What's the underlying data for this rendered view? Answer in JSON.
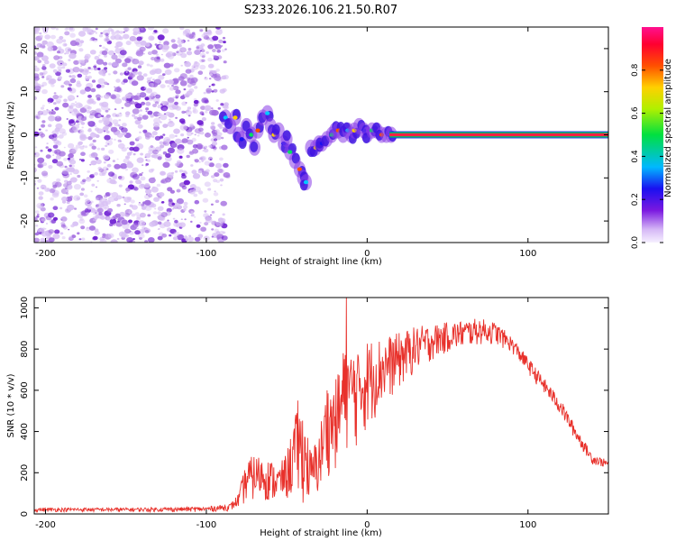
{
  "title": "S233.2026.106.21.50.R07",
  "colors": {
    "snr_line": "#e8312b",
    "spectral_line_core": "#ff1f44",
    "spectral_line_edge": "#00c060",
    "scatter_light": "#d8c0f4",
    "scatter_mid": "#a46ee0",
    "scatter_dark": "#6a18d0"
  },
  "chart_data": [
    {
      "type": "heatmap",
      "title": "S233.2026.106.21.50.R07",
      "xlabel": "Height of straight line (km)",
      "ylabel": "Frequency (Hz)",
      "xlim": [
        -207,
        150
      ],
      "ylim": [
        -25,
        25
      ],
      "x_ticks": [
        -200,
        -100,
        0,
        100
      ],
      "y_ticks": [
        -20,
        -10,
        0,
        10,
        20
      ],
      "colorbar": {
        "label": "Normalized spectral amplitude",
        "range": [
          0,
          1
        ],
        "ticks": [
          0.0,
          0.2,
          0.4,
          0.6,
          0.8
        ],
        "tick_labels": [
          "0.0",
          "0.2",
          "0.4",
          "0.6",
          "0.8"
        ],
        "colormap": "hsv-reversed (purple → blue → cyan → green → yellow → red → magenta)"
      },
      "regions": [
        {
          "name": "diffuse noise",
          "x_range": [
            -207,
            -88
          ],
          "freq_range": [
            -25,
            25
          ],
          "amplitude": [
            0.0,
            0.15
          ]
        },
        {
          "name": "coherent wandering signal",
          "x_range": [
            -88,
            15
          ],
          "amplitude": [
            0.1,
            0.5
          ]
        },
        {
          "name": "steady line",
          "x_range": [
            15,
            150
          ],
          "frequency": 0,
          "amplitude": 1.0
        }
      ],
      "signal_track": [
        {
          "x": -88,
          "freq": 4
        },
        {
          "x": -85,
          "freq": 2
        },
        {
          "x": -82,
          "freq": 4
        },
        {
          "x": -80,
          "freq": 0
        },
        {
          "x": -78,
          "freq": -1
        },
        {
          "x": -75,
          "freq": 2
        },
        {
          "x": -72,
          "freq": 0
        },
        {
          "x": -70,
          "freq": -3
        },
        {
          "x": -68,
          "freq": 1
        },
        {
          "x": -65,
          "freq": 4
        },
        {
          "x": -62,
          "freq": 5
        },
        {
          "x": -60,
          "freq": 2
        },
        {
          "x": -58,
          "freq": 0
        },
        {
          "x": -55,
          "freq": 1
        },
        {
          "x": -52,
          "freq": -2
        },
        {
          "x": -50,
          "freq": -1
        },
        {
          "x": -48,
          "freq": -4
        },
        {
          "x": -45,
          "freq": -6
        },
        {
          "x": -42,
          "freq": -8
        },
        {
          "x": -40,
          "freq": -10
        },
        {
          "x": -38,
          "freq": -11
        },
        {
          "x": -35,
          "freq": -3
        },
        {
          "x": -32,
          "freq": -3
        },
        {
          "x": -30,
          "freq": -2
        },
        {
          "x": -28,
          "freq": -2
        },
        {
          "x": -25,
          "freq": -1
        },
        {
          "x": -22,
          "freq": 0
        },
        {
          "x": -20,
          "freq": 1
        },
        {
          "x": -18,
          "freq": 1
        },
        {
          "x": -15,
          "freq": 0
        },
        {
          "x": -12,
          "freq": 1
        },
        {
          "x": -10,
          "freq": 0
        },
        {
          "x": -8,
          "freq": 1
        },
        {
          "x": -5,
          "freq": 2
        },
        {
          "x": -2,
          "freq": 1
        },
        {
          "x": 0,
          "freq": 0
        },
        {
          "x": 3,
          "freq": 1
        },
        {
          "x": 6,
          "freq": 1
        },
        {
          "x": 9,
          "freq": 0
        },
        {
          "x": 12,
          "freq": 0
        },
        {
          "x": 15,
          "freq": 0
        }
      ]
    },
    {
      "type": "line",
      "xlabel": "Height of straight line (km)",
      "ylabel": "SNR (10 * v/v)",
      "xlim": [
        -207,
        150
      ],
      "ylim": [
        0,
        1050
      ],
      "x_ticks": [
        -200,
        -100,
        0,
        100
      ],
      "y_ticks": [
        0,
        200,
        400,
        600,
        800,
        1000
      ],
      "series": [
        {
          "name": "SNR",
          "color": "#e8312b",
          "envelope": {
            "x": [
              -207,
              -150,
              -100,
              -85,
              -80,
              -75,
              -70,
              -65,
              -60,
              -55,
              -50,
              -45,
              -40,
              -35,
              -30,
              -25,
              -20,
              -15,
              -10,
              -5,
              0,
              10,
              20,
              30,
              40,
              50,
              60,
              70,
              80,
              90,
              100,
              110,
              120,
              130,
              140,
              150
            ],
            "low": [
              10,
              10,
              10,
              15,
              30,
              50,
              60,
              70,
              50,
              60,
              60,
              70,
              50,
              40,
              80,
              180,
              200,
              250,
              300,
              320,
              400,
              520,
              600,
              680,
              740,
              780,
              800,
              820,
              820,
              780,
              680,
              580,
              480,
              350,
              240,
              220
            ],
            "high": [
              30,
              30,
              35,
              50,
              100,
              260,
              290,
              280,
              260,
              230,
              300,
              480,
              530,
              300,
              400,
              620,
              640,
              780,
              810,
              840,
              850,
              860,
              880,
              910,
              920,
              930,
              940,
              950,
              930,
              860,
              760,
              660,
              560,
              420,
              290,
              260
            ]
          },
          "spikes": [
            {
              "x": -13,
              "y": 1050
            },
            {
              "x": -15,
              "y": 780
            },
            {
              "x": -12,
              "y": 720
            },
            {
              "x": -43,
              "y": 550
            },
            {
              "x": -25,
              "y": 600
            },
            {
              "x": -5,
              "y": 700
            }
          ]
        }
      ]
    }
  ]
}
